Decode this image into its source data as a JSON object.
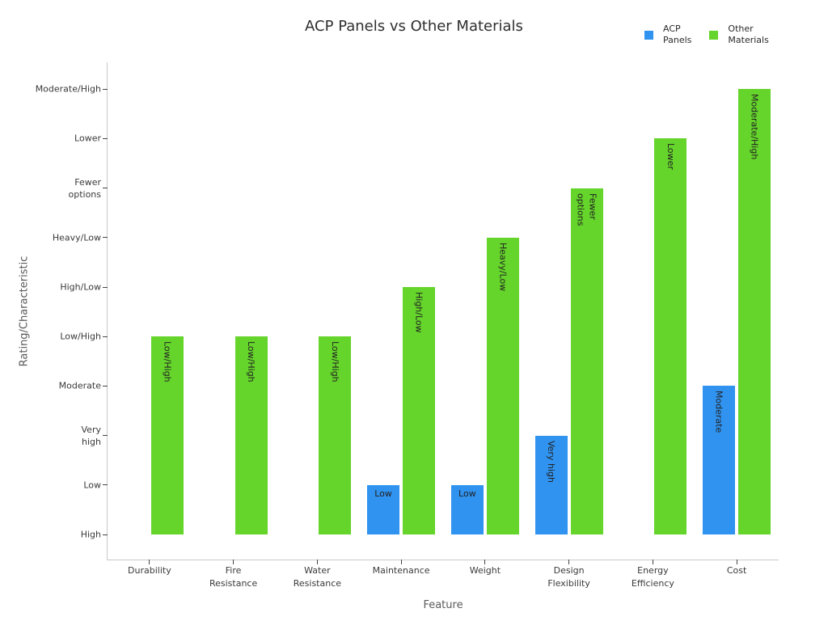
{
  "chart_data": {
    "type": "bar",
    "title": "ACP Panels vs Other Materials",
    "xlabel": "Feature",
    "ylabel": "Rating/Characteristic",
    "categories": [
      "Durability",
      "Fire Resistance",
      "Water Resistance",
      "Maintenance",
      "Weight",
      "Design Flexibility",
      "Energy Efficiency",
      "Cost"
    ],
    "y_tick_labels": [
      "High",
      "Low",
      "Very high",
      "Moderate",
      "Low/High",
      "High/Low",
      "Heavy/Low",
      "Fewer\noptions",
      "Lower",
      "Moderate/High"
    ],
    "series": [
      {
        "name": "ACP Panels",
        "legend_label": "ACP\nPanels",
        "color": "#3093f0",
        "values": [
          "High",
          "High",
          "High",
          "Low",
          "Low",
          "Very high",
          "High",
          "Moderate"
        ]
      },
      {
        "name": "Other Materials",
        "legend_label": "Other\nMaterials",
        "color": "#65d42b",
        "values": [
          "Low/High",
          "Low/High",
          "Low/High",
          "High/Low",
          "Heavy/Low",
          "Fewer options",
          "Lower",
          "Moderate/High"
        ]
      }
    ],
    "value_scale_note": "ordinal scale: bar height = index of value in y_tick_labels, baseline at High",
    "ylim": [
      -0.5,
      9.5
    ],
    "grid": false,
    "legend_position": "top-right",
    "bar_value_labels": "inside-top"
  }
}
